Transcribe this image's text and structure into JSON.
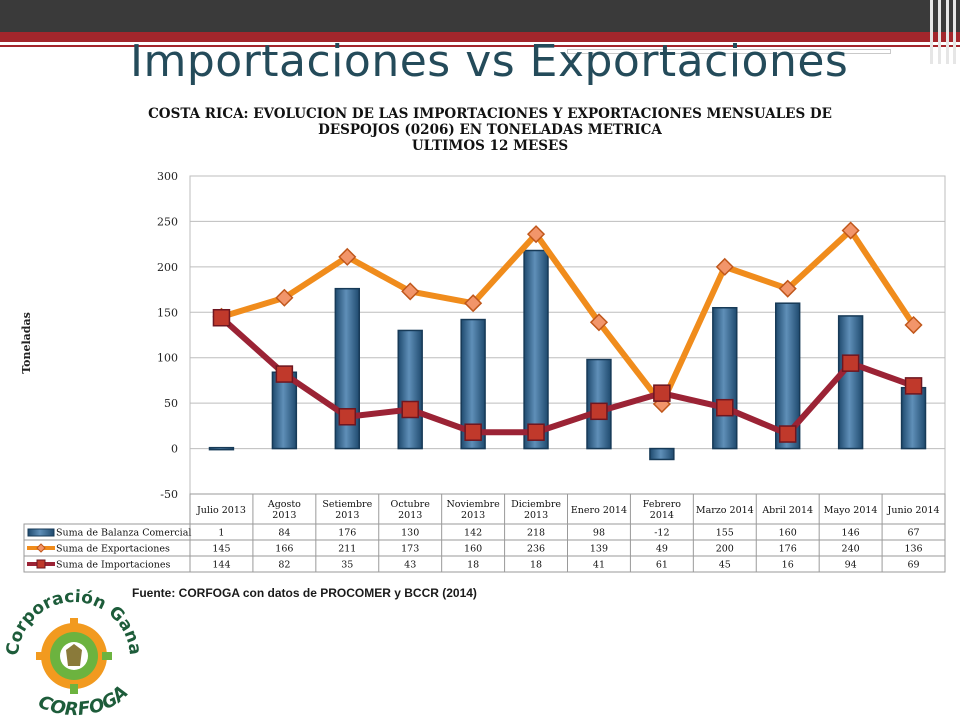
{
  "slide": {
    "title": "Importaciones vs Exportaciones",
    "source": "Fuente: CORFOGA con datos de PROCOMER y BCCR (2014)"
  },
  "logo": {
    "top_text": "Corporación Ganadera",
    "bottom_text": "CORFOGA"
  },
  "colors": {
    "bar": "#2f5f86",
    "exportaciones": "#f08c1c",
    "importaciones": "#9b2335",
    "marker_exp": "#f2956a",
    "marker_imp": "#c0392b"
  },
  "chart_data": {
    "type": "bar",
    "title_lines": [
      "COSTA RICA: EVOLUCION DE LAS IMPORTACIONES Y EXPORTACIONES MENSUALES DE",
      "DESPOJOS (0206) EN TONELADAS METRICA",
      "ULTIMOS 12 MESES"
    ],
    "ylabel": "Toneladas",
    "ylim": [
      -50,
      300
    ],
    "yticks": [
      300,
      250,
      200,
      150,
      100,
      50,
      0,
      -50
    ],
    "grid": true,
    "categories": [
      "Julio 2013",
      "Agosto 2013",
      "Setiembre 2013",
      "Octubre 2013",
      "Noviembre 2013",
      "Diciembre 2013",
      "Enero 2014",
      "Febrero 2014",
      "Marzo 2014",
      "Abril 2014",
      "Mayo 2014",
      "Junio 2014"
    ],
    "series": [
      {
        "name": "Suma de Balanza Comercial",
        "kind": "bar",
        "values": [
          1,
          84,
          176,
          130,
          142,
          218,
          98,
          -12,
          155,
          160,
          146,
          67
        ]
      },
      {
        "name": "Suma de Exportaciones",
        "kind": "line",
        "values": [
          145,
          166,
          211,
          173,
          160,
          236,
          139,
          49,
          200,
          176,
          240,
          136
        ]
      },
      {
        "name": "Suma de Importaciones",
        "kind": "line",
        "values": [
          144,
          82,
          35,
          43,
          18,
          18,
          41,
          61,
          45,
          16,
          94,
          69
        ]
      }
    ]
  }
}
